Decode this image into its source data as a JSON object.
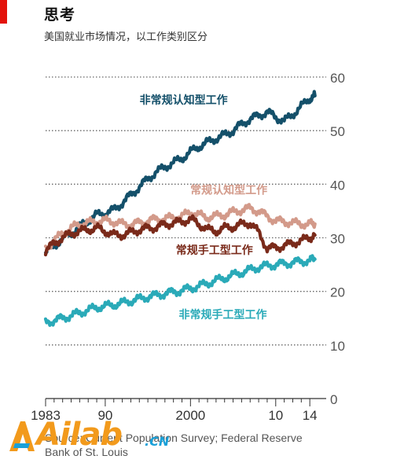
{
  "header": {
    "title": "思考",
    "subtitle": "美国就业市场情况，以工作类别区分"
  },
  "source": {
    "line1": "Source: Current Population Survey; Federal Reserve",
    "line2": "Bank of St. Louis"
  },
  "watermark": {
    "text": "Ailab",
    "suffix": ".CN",
    "color": "#f29a1c",
    "suffix_color": "#1aa0d8"
  },
  "chart_data": {
    "type": "line",
    "title": "",
    "xlabel": "",
    "ylabel": "",
    "xlim": [
      1983,
      2015
    ],
    "ylim": [
      0,
      60
    ],
    "y_axis_side": "right",
    "grid": "horizontal-dotted",
    "x_ticks": [
      {
        "value": 1983,
        "label": "1983"
      },
      {
        "value": 1990,
        "label": "90"
      },
      {
        "value": 2000,
        "label": "2000"
      },
      {
        "value": 2010,
        "label": "10"
      },
      {
        "value": 2014,
        "label": "14"
      }
    ],
    "y_ticks": [
      0,
      10,
      20,
      30,
      40,
      50,
      60
    ],
    "series": [
      {
        "name": "非常规认知型工作",
        "color": "#14506a",
        "x": [
          1983,
          1984,
          1985,
          1986,
          1987,
          1988,
          1989,
          1990,
          1991,
          1992,
          1993,
          1994,
          1995,
          1996,
          1997,
          1998,
          1999,
          2000,
          2001,
          2002,
          2003,
          2004,
          2005,
          2006,
          2007,
          2008,
          2009,
          2010,
          2011,
          2012,
          2013,
          2014,
          2014.6
        ],
        "y": [
          27.2,
          28.5,
          29.8,
          30.8,
          32.0,
          33.2,
          34.3,
          34.6,
          35.2,
          36.5,
          38.0,
          39.5,
          41.0,
          42.3,
          43.2,
          44.0,
          44.8,
          46.0,
          47.0,
          47.8,
          48.5,
          49.2,
          50.0,
          51.2,
          52.2,
          52.8,
          53.5,
          52.5,
          51.8,
          53.0,
          54.5,
          56.0,
          56.5
        ]
      },
      {
        "name": "常规认知型工作",
        "color": "#d39a8a",
        "x": [
          1983,
          1984,
          1985,
          1986,
          1987,
          1988,
          1989,
          1990,
          1991,
          1992,
          1993,
          1994,
          1995,
          1996,
          1997,
          1998,
          1999,
          2000,
          2001,
          2002,
          2003,
          2004,
          2005,
          2006,
          2007,
          2008,
          2009,
          2010,
          2011,
          2012,
          2013,
          2014,
          2014.6
        ],
        "y": [
          28.0,
          29.5,
          30.8,
          31.8,
          32.5,
          32.8,
          33.0,
          33.2,
          33.0,
          32.6,
          32.5,
          32.8,
          33.2,
          33.5,
          33.6,
          33.8,
          34.0,
          34.8,
          34.2,
          33.8,
          34.0,
          34.3,
          34.8,
          35.2,
          35.5,
          35.0,
          34.0,
          33.2,
          33.0,
          32.8,
          32.6,
          32.5,
          32.6
        ]
      },
      {
        "name": "常规手工型工作",
        "color": "#7a2a1a",
        "x": [
          1983,
          1984,
          1985,
          1986,
          1987,
          1988,
          1989,
          1990,
          1991,
          1992,
          1993,
          1994,
          1995,
          1996,
          1997,
          1998,
          1999,
          2000,
          2001,
          2002,
          2003,
          2004,
          2005,
          2006,
          2007,
          2008,
          2009,
          2010,
          2011,
          2012,
          2013,
          2014,
          2014.6
        ],
        "y": [
          27.5,
          29.0,
          30.0,
          30.8,
          31.2,
          31.5,
          31.8,
          31.2,
          30.5,
          30.5,
          31.0,
          31.5,
          31.8,
          32.0,
          32.5,
          32.8,
          33.0,
          33.5,
          32.5,
          31.5,
          31.2,
          31.8,
          32.0,
          32.5,
          32.8,
          31.0,
          28.0,
          28.2,
          28.5,
          29.0,
          29.5,
          30.0,
          30.5
        ]
      },
      {
        "name": "非常规手工型工作",
        "color": "#2aaab8",
        "x": [
          1983,
          1984,
          1985,
          1986,
          1987,
          1988,
          1989,
          1990,
          1991,
          1992,
          1993,
          1994,
          1995,
          1996,
          1997,
          1998,
          1999,
          2000,
          2001,
          2002,
          2003,
          2004,
          2005,
          2006,
          2007,
          2008,
          2009,
          2010,
          2011,
          2012,
          2013,
          2014,
          2014.6
        ],
        "y": [
          14.2,
          14.6,
          15.0,
          15.5,
          16.0,
          16.5,
          17.0,
          17.2,
          17.5,
          17.8,
          18.2,
          18.6,
          19.0,
          19.3,
          19.6,
          19.9,
          20.2,
          20.6,
          21.0,
          21.5,
          22.0,
          22.5,
          23.0,
          23.5,
          24.0,
          24.5,
          24.8,
          25.0,
          25.2,
          25.4,
          25.6,
          25.8,
          26.0
        ]
      }
    ],
    "series_label_anchors": [
      {
        "series": 0,
        "x": 1999.2,
        "y": 55.0
      },
      {
        "series": 1,
        "x": 2004.5,
        "y": 38.2
      },
      {
        "series": 2,
        "x": 2002.8,
        "y": 27.0
      },
      {
        "series": 3,
        "x": 2003.8,
        "y": 15.0
      }
    ]
  }
}
